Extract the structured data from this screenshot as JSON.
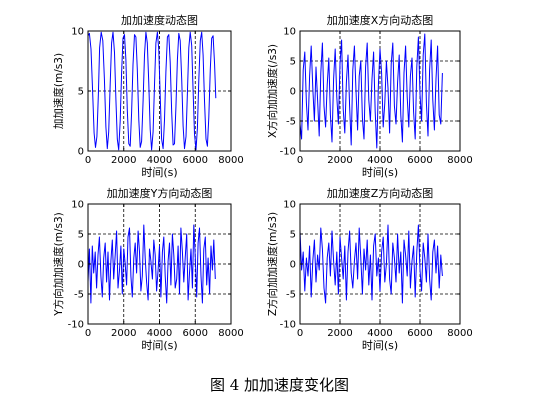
{
  "figure_caption": "图 4  加加速度变化图",
  "colors": {
    "line": "#0000ff",
    "grid": "#000000",
    "axes": "#000000"
  },
  "chart_data": [
    {
      "type": "line",
      "title": "加加速度动态图",
      "xlabel": "时间(s)",
      "ylabel": "加加速度(m/s3)",
      "xlim": [
        0,
        8000
      ],
      "ylim": [
        0,
        10
      ],
      "xticks": [
        0,
        2000,
        4000,
        6000,
        8000
      ],
      "yticks": [
        0,
        5,
        10
      ],
      "grid": true,
      "grid_style": "dashed",
      "series": [
        {
          "x": [
            0,
            80,
            170,
            260,
            340,
            420,
            500,
            580,
            650,
            740,
            830,
            920,
            1000,
            1080,
            1160,
            1240,
            1320,
            1400,
            1480,
            1560,
            1640,
            1720,
            1800,
            1880,
            1960,
            2040,
            2120,
            2200,
            2280,
            2360,
            2440,
            2520,
            2600,
            2680,
            2760,
            2840,
            2920,
            3000,
            3080,
            3160,
            3240,
            3320,
            3400,
            3480,
            3560,
            3640,
            3720,
            3800,
            3880,
            3960,
            4040,
            4120,
            4200,
            4280,
            4360,
            4440,
            4520,
            4600,
            4680,
            4760,
            4840,
            4920,
            5000,
            5080,
            5160,
            5240,
            5320,
            5400,
            5480,
            5560,
            5640,
            5720,
            5800,
            5880,
            5960,
            6040,
            6120,
            6200,
            6280,
            6360,
            6440,
            6520,
            6600,
            6680,
            6760,
            6840,
            6920,
            7000,
            7080,
            7150
          ],
          "y": [
            9.6,
            9.8,
            8.5,
            5.0,
            1.5,
            0.3,
            1.2,
            4.8,
            8.6,
            9.9,
            9.2,
            6.0,
            2.0,
            0.2,
            1.6,
            5.6,
            9.0,
            9.9,
            8.2,
            4.3,
            1.0,
            0.1,
            2.5,
            6.5,
            9.4,
            9.7,
            7.6,
            3.4,
            0.6,
            0.4,
            3.2,
            7.2,
            9.7,
            9.5,
            6.8,
            2.6,
            0.3,
            0.8,
            4.2,
            8.0,
            9.9,
            9.0,
            5.6,
            1.8,
            0.1,
            1.6,
            5.5,
            9.0,
            9.9,
            8.4,
            4.6,
            1.0,
            0.2,
            2.6,
            6.6,
            9.5,
            9.7,
            7.4,
            3.2,
            0.5,
            0.6,
            3.6,
            7.6,
            9.8,
            9.2,
            6.0,
            2.1,
            0.2,
            1.2,
            4.8,
            8.6,
            9.9,
            8.8,
            5.0,
            1.4,
            0.1,
            1.9,
            5.9,
            9.2,
            9.9,
            8.0,
            4.2,
            1.0,
            0.4,
            2.8,
            6.8,
            9.4,
            9.6,
            7.2,
            4.4
          ]
        }
      ]
    },
    {
      "type": "line",
      "title": "加加速度X方向动态图",
      "xlabel": "时间(s)",
      "ylabel": "X方向加加速度(/s3)",
      "xlim": [
        0,
        8000
      ],
      "ylim": [
        -10,
        10
      ],
      "xticks": [
        0,
        2000,
        4000,
        6000,
        8000
      ],
      "yticks": [
        -10,
        -5,
        0,
        5,
        10
      ],
      "grid": true,
      "grid_style": "dashed",
      "series": [
        {
          "x": [
            0,
            80,
            160,
            240,
            320,
            400,
            480,
            560,
            640,
            720,
            800,
            880,
            960,
            1040,
            1120,
            1200,
            1280,
            1360,
            1440,
            1520,
            1600,
            1680,
            1760,
            1840,
            1920,
            2000,
            2080,
            2160,
            2240,
            2320,
            2400,
            2480,
            2560,
            2640,
            2720,
            2800,
            2880,
            2960,
            3040,
            3120,
            3200,
            3280,
            3360,
            3440,
            3520,
            3600,
            3680,
            3760,
            3840,
            3920,
            4000,
            4080,
            4160,
            4240,
            4320,
            4400,
            4480,
            4560,
            4640,
            4720,
            4800,
            4880,
            4960,
            5040,
            5120,
            5200,
            5280,
            5360,
            5440,
            5520,
            5600,
            5680,
            5760,
            5840,
            5920,
            6000,
            6080,
            6160,
            6240,
            6320,
            6400,
            6480,
            6560,
            6640,
            6720,
            6800,
            6880,
            6960,
            7040,
            7120
          ],
          "y": [
            -5.5,
            -8.0,
            3.5,
            6.5,
            -2.0,
            -6.5,
            2.5,
            7.5,
            0.5,
            -5.0,
            4.0,
            -1.5,
            -7.5,
            3.0,
            8.0,
            -2.5,
            -6.0,
            1.0,
            5.5,
            -4.0,
            -8.5,
            2.0,
            7.0,
            -1.0,
            -5.5,
            4.5,
            8.5,
            -3.0,
            -7.0,
            1.5,
            6.0,
            -2.5,
            -9.0,
            3.5,
            7.5,
            0.0,
            -6.5,
            2.5,
            5.0,
            -4.5,
            -8.0,
            4.0,
            8.0,
            -1.5,
            -5.0,
            2.0,
            6.5,
            -3.5,
            -9.5,
            1.0,
            7.0,
            3.0,
            -6.0,
            -2.0,
            5.0,
            0.5,
            -7.0,
            4.5,
            8.0,
            -2.5,
            -5.5,
            1.5,
            6.0,
            -4.0,
            -8.5,
            3.0,
            7.5,
            -1.0,
            -6.0,
            2.5,
            5.5,
            -3.5,
            -8.0,
            4.0,
            9.0,
            -0.5,
            -5.0,
            6.0,
            9.5,
            -2.0,
            -7.5,
            3.5,
            8.5,
            -1.5,
            -6.5,
            2.0,
            7.5,
            -4.0,
            -5.5,
            3.0
          ]
        }
      ]
    },
    {
      "type": "line",
      "title": "加加速度Y方向动态图",
      "xlabel": "时间(s)",
      "ylabel": "Y方向加加速度(m/s3)",
      "xlim": [
        0,
        8000
      ],
      "ylim": [
        -10,
        10
      ],
      "xticks": [
        0,
        2000,
        4000,
        6000,
        8000
      ],
      "yticks": [
        -10,
        -5,
        0,
        5,
        10
      ],
      "grid": true,
      "grid_style": "dashed",
      "series": [
        {
          "x": [
            0,
            80,
            160,
            240,
            320,
            400,
            480,
            560,
            640,
            720,
            800,
            880,
            960,
            1040,
            1120,
            1200,
            1280,
            1360,
            1440,
            1520,
            1600,
            1680,
            1760,
            1840,
            1920,
            2000,
            2080,
            2160,
            2240,
            2320,
            2400,
            2480,
            2560,
            2640,
            2720,
            2800,
            2880,
            2960,
            3040,
            3120,
            3200,
            3280,
            3360,
            3440,
            3520,
            3600,
            3680,
            3760,
            3840,
            3920,
            4000,
            4080,
            4160,
            4240,
            4320,
            4400,
            4480,
            4560,
            4640,
            4720,
            4800,
            4880,
            4960,
            5040,
            5120,
            5200,
            5280,
            5360,
            5440,
            5520,
            5600,
            5680,
            5760,
            5840,
            5920,
            6000,
            6080,
            6160,
            6240,
            6320,
            6400,
            6480,
            6560,
            6640,
            6720,
            6800,
            6880,
            6960,
            7040,
            7120
          ],
          "y": [
            -3.0,
            2.5,
            -6.5,
            3.0,
            -1.5,
            2.0,
            -4.0,
            1.5,
            4.5,
            -2.0,
            -5.5,
            1.0,
            3.5,
            -3.0,
            2.0,
            -6.0,
            0.5,
            4.0,
            -2.5,
            1.5,
            5.5,
            -4.0,
            -1.0,
            3.0,
            -5.0,
            2.5,
            0.0,
            -3.5,
            4.5,
            6.0,
            -2.0,
            -5.5,
            1.0,
            3.5,
            -1.5,
            5.5,
            2.0,
            -4.5,
            -2.0,
            6.5,
            1.0,
            -3.0,
            -6.0,
            2.5,
            0.5,
            -2.5,
            4.0,
            1.5,
            -4.5,
            -1.0,
            3.0,
            -5.5,
            2.0,
            4.5,
            -2.0,
            -6.5,
            0.5,
            3.5,
            -3.5,
            5.0,
            1.5,
            -4.0,
            -2.5,
            3.0,
            -5.0,
            6.0,
            2.0,
            -3.0,
            1.0,
            5.0,
            -6.0,
            -1.5,
            2.5,
            -4.0,
            6.5,
            1.0,
            -5.5,
            3.5,
            6.0,
            -2.0,
            -6.5,
            2.5,
            4.5,
            -3.5,
            1.0,
            -5.0,
            3.0,
            -1.0,
            4.0,
            -2.5
          ]
        }
      ]
    },
    {
      "type": "line",
      "title": "加加速度Z方向动态图",
      "xlabel": "时间(s)",
      "ylabel": "Z方向加加速度(m/s3)",
      "xlim": [
        0,
        8000
      ],
      "ylim": [
        -10,
        10
      ],
      "xticks": [
        0,
        2000,
        4000,
        6000,
        8000
      ],
      "yticks": [
        -10,
        -5,
        0,
        5,
        10
      ],
      "grid": true,
      "grid_style": "dashed",
      "series": [
        {
          "x": [
            0,
            80,
            160,
            240,
            320,
            400,
            480,
            560,
            640,
            720,
            800,
            880,
            960,
            1040,
            1120,
            1200,
            1280,
            1360,
            1440,
            1520,
            1600,
            1680,
            1760,
            1840,
            1920,
            2000,
            2080,
            2160,
            2240,
            2320,
            2400,
            2480,
            2560,
            2640,
            2720,
            2800,
            2880,
            2960,
            3040,
            3120,
            3200,
            3280,
            3360,
            3440,
            3520,
            3600,
            3680,
            3760,
            3840,
            3920,
            4000,
            4080,
            4160,
            4240,
            4320,
            4400,
            4480,
            4560,
            4640,
            4720,
            4800,
            4880,
            4960,
            5040,
            5120,
            5200,
            5280,
            5360,
            5440,
            5520,
            5600,
            5680,
            5760,
            5840,
            5920,
            6000,
            6080,
            6160,
            6240,
            6320,
            6400,
            6480,
            6560,
            6640,
            6720,
            6800,
            6880,
            6960,
            7040,
            7120
          ],
          "y": [
            5.5,
            -1.0,
            2.0,
            -4.5,
            1.0,
            -2.0,
            3.0,
            -5.5,
            0.5,
            4.0,
            -3.0,
            1.5,
            -1.0,
            6.0,
            2.5,
            -4.0,
            -6.5,
            1.0,
            3.5,
            -2.0,
            5.5,
            0.5,
            -3.5,
            2.0,
            -5.0,
            4.5,
            1.0,
            -2.5,
            3.0,
            -6.0,
            2.0,
            5.5,
            -1.5,
            -4.0,
            0.5,
            3.5,
            -2.5,
            6.0,
            1.0,
            -5.0,
            2.5,
            -1.0,
            4.0,
            -3.5,
            1.5,
            -6.0,
            3.0,
            5.0,
            -2.0,
            1.0,
            -4.5,
            2.0,
            4.5,
            -3.0,
            0.0,
            6.5,
            -2.5,
            -5.0,
            3.5,
            1.0,
            -3.0,
            5.0,
            -1.5,
            2.0,
            -6.5,
            4.0,
            1.5,
            -2.0,
            5.5,
            -4.0,
            0.5,
            3.0,
            -5.5,
            2.0,
            6.5,
            -1.0,
            -4.5,
            3.5,
            1.0,
            -3.0,
            5.0,
            -2.5,
            -6.0,
            2.0,
            4.0,
            -1.5,
            3.0,
            -4.0,
            1.5,
            -2.0
          ]
        }
      ]
    }
  ]
}
